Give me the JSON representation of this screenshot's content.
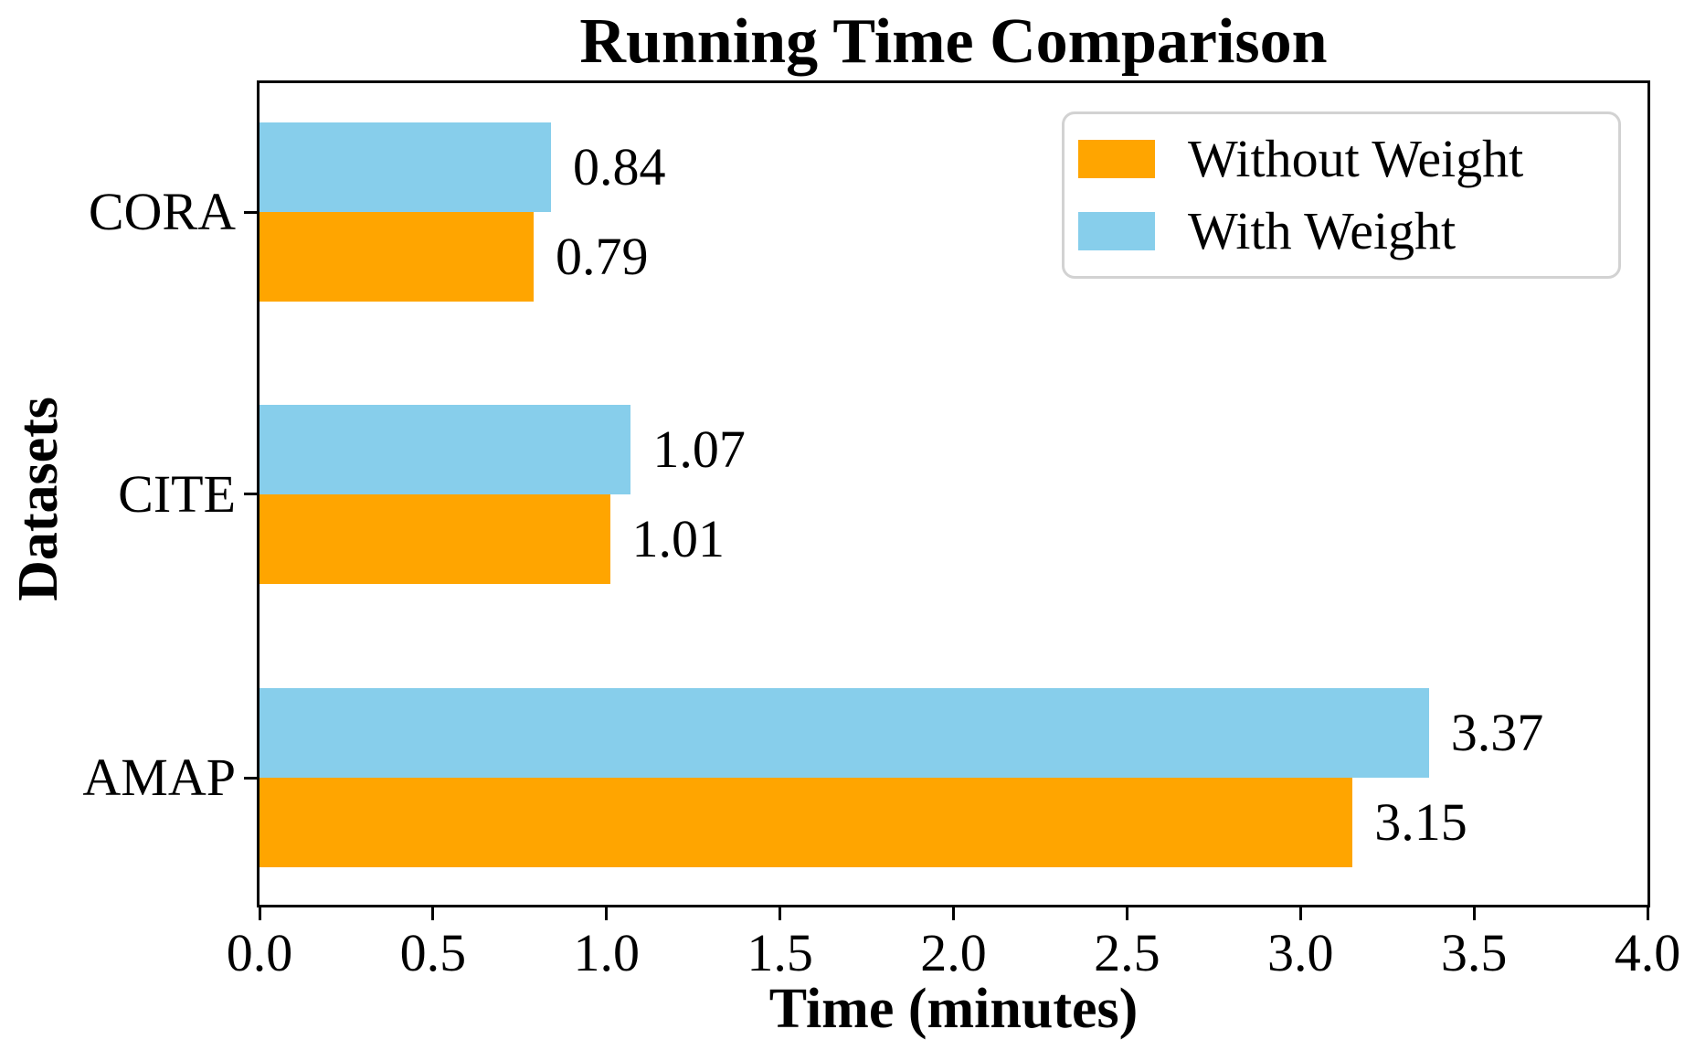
{
  "title": "Running Time Comparison",
  "chart_data": {
    "type": "bar",
    "orientation": "horizontal",
    "title": "Running Time Comparison",
    "xlabel": "Time (minutes)",
    "ylabel": "Datasets",
    "categories": [
      "CORA",
      "CITE",
      "AMAP"
    ],
    "series": [
      {
        "name": "Without Weight",
        "color": "#FFA500",
        "values": [
          0.79,
          1.01,
          3.15
        ]
      },
      {
        "name": "With Weight",
        "color": "#87CEEB",
        "values": [
          0.84,
          1.07,
          3.37
        ]
      }
    ],
    "bar_value_labels": [
      [
        "0.79",
        "1.01",
        "3.15"
      ],
      [
        "0.84",
        "1.07",
        "3.37"
      ]
    ],
    "xlim": [
      0.0,
      4.0
    ],
    "xticks": [
      "0.0",
      "0.5",
      "1.0",
      "1.5",
      "2.0",
      "2.5",
      "3.0",
      "3.5",
      "4.0"
    ],
    "grid": false,
    "legend_position": "upper right",
    "frame_color": "#000000",
    "background_color": "#ffffff"
  }
}
